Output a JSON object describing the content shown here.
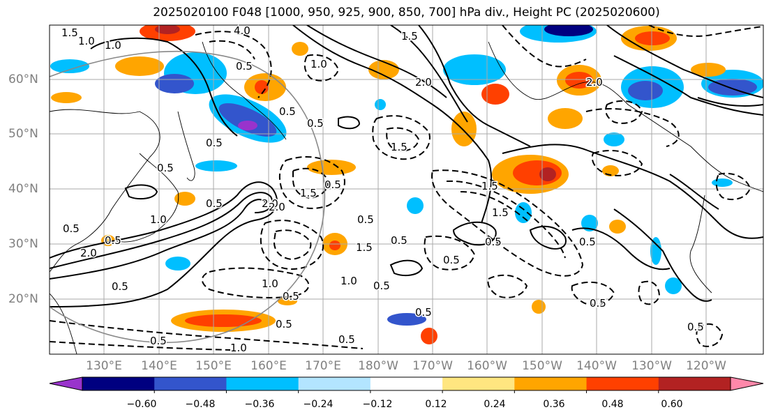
{
  "title": "2025020100 F048 [1000, 950, 925, 900, 850, 700] hPa div., Height PC (2025020600)",
  "lat_labels": [
    "60°N",
    "50°N",
    "40°N",
    "30°N",
    "20°N"
  ],
  "lon_labels": [
    "130°E",
    "140°E",
    "150°E",
    "160°E",
    "170°E",
    "180°W",
    "170°W",
    "160°W",
    "150°W",
    "140°W",
    "130°W",
    "120°W"
  ],
  "colorbar": {
    "ticks": [
      "−0.60",
      "−0.48",
      "−0.36",
      "−0.24",
      "−0.12",
      "0.12",
      "0.24",
      "0.36",
      "0.48",
      "0.60"
    ],
    "colors": [
      "#9933cc",
      "#000080",
      "#3355cc",
      "#00bfff",
      "#b3e5ff",
      "#ffffff",
      "#ffe680",
      "#ffa500",
      "#ff4000",
      "#b22222",
      "#ff88aa"
    ]
  },
  "contour_labels": [
    "1.5",
    "1.0",
    "1.0",
    "4.0",
    "0.5",
    "1.0",
    "0.5",
    "0.5",
    "1.5",
    "2.0",
    "1.5",
    "0.5",
    "0.5",
    "0.5",
    "2.0",
    "1.5",
    "0.5",
    "0.5",
    "1.5",
    "0.5",
    "2.0",
    "0.5",
    "0.5",
    "1.0",
    "2.0",
    "1.5",
    "2.0",
    "0.5",
    "1.5",
    "0.5",
    "0.5",
    "0.5",
    "1.0",
    "0.5",
    "1.0",
    "0.5",
    "0.5",
    "0.5",
    "0.5",
    "0.5",
    "1.0",
    "0.5",
    "0.5"
  ]
}
